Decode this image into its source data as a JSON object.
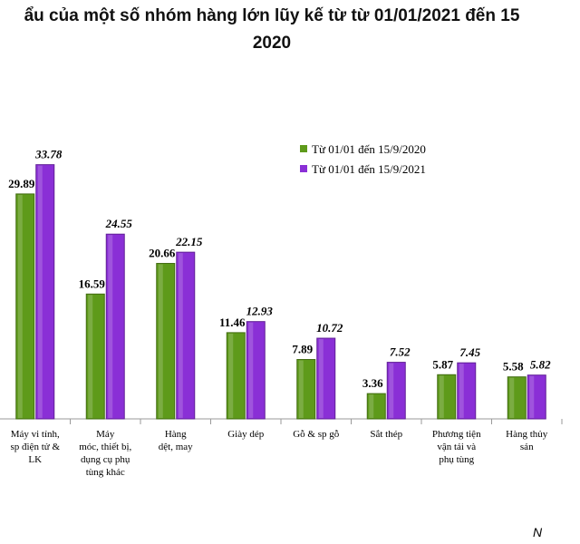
{
  "chart_data": {
    "type": "bar",
    "title_line1": "ẩu của một số nhóm hàng lớn lũy kế từ từ 01/01/2021 đến 15",
    "title_line2": "2020",
    "categories": [
      [
        "Máy vi tính,",
        "sp điện tử &",
        "LK"
      ],
      [
        "Máy",
        "móc, thiết bị,",
        "dụng cụ phụ",
        "tùng khác"
      ],
      [
        "Hàng",
        "dệt, may"
      ],
      [
        "Giày dép"
      ],
      [
        "Gỗ & sp gỗ"
      ],
      [
        "Sắt thép"
      ],
      [
        "Phương tiện",
        "vận tải và",
        "phụ tùng"
      ],
      [
        "Hàng thủy",
        "sản"
      ]
    ],
    "series": [
      {
        "name": "Từ 01/01 đến 15/9/2020",
        "color": "#5e9a1a",
        "values": [
          29.89,
          16.59,
          20.66,
          11.46,
          7.89,
          3.36,
          5.87,
          5.58
        ],
        "labels": [
          "29.89",
          "16.59",
          "20.66",
          "11.46",
          "7.89",
          "3.36",
          "5.87",
          "5.58"
        ]
      },
      {
        "name": "Từ 01/01 đến 15/9/2021",
        "color": "#8a2fd6",
        "values": [
          33.78,
          24.55,
          22.15,
          12.93,
          10.72,
          7.52,
          7.45,
          5.82
        ],
        "labels": [
          "33.78",
          "24.55",
          "22.15",
          "12.93",
          "10.72",
          "7.52",
          "7.45",
          "5.82"
        ]
      }
    ],
    "ylim": [
      0,
      36
    ],
    "legend_position": "top-right",
    "source_partial": "N"
  }
}
